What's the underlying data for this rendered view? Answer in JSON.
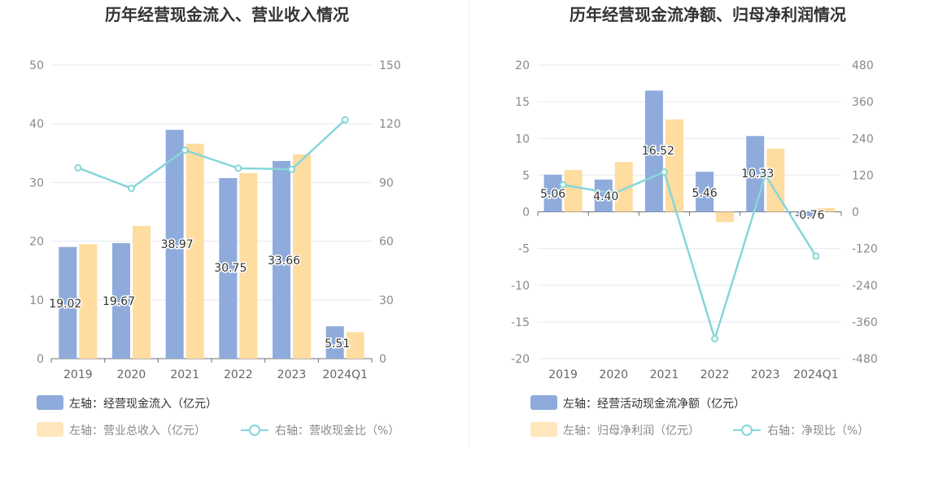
{
  "colors": {
    "cash_bar": "#8eabdb",
    "second_bar": "#ffdca0",
    "line": "#86d6d9",
    "grid": "#e6e9f2",
    "legend_dark": "#333333",
    "legend_light": "#8a8a8a"
  },
  "chart_data": [
    {
      "type": "bar",
      "title": "历年经营现金流入、营业收入情况",
      "categories": [
        "2019",
        "2020",
        "2021",
        "2022",
        "2023",
        "2024Q1"
      ],
      "ylim_left": [
        0,
        50
      ],
      "ylim_right": [
        0,
        150
      ],
      "left_ticks": [
        "50",
        "40",
        "30",
        "20",
        "10",
        "0"
      ],
      "right_ticks": [
        "150",
        "120",
        "90",
        "60",
        "30",
        "0"
      ],
      "series": [
        {
          "name": "左轴：经营现金流入（亿元）",
          "kind": "bar",
          "axis": "left",
          "values": [
            19.02,
            19.67,
            38.97,
            30.75,
            33.66,
            5.51
          ],
          "labels": [
            "19.02",
            "19.67",
            "38.97",
            "30.75",
            "33.66",
            "5.51"
          ]
        },
        {
          "name": "左轴：营业总收入（亿元）",
          "kind": "bar",
          "axis": "left",
          "values": [
            19.5,
            22.6,
            36.6,
            31.6,
            34.8,
            4.5
          ]
        },
        {
          "name": "右轴：营收现金比（%）",
          "kind": "line",
          "axis": "right",
          "values": [
            97.5,
            87.0,
            106.5,
            97.3,
            96.7,
            122.0
          ]
        }
      ],
      "grid": true,
      "legend_position": "bottom-left"
    },
    {
      "type": "bar",
      "title": "历年经营现金流净额、归母净利润情况",
      "categories": [
        "2019",
        "2020",
        "2021",
        "2022",
        "2023",
        "2024Q1"
      ],
      "ylim_left": [
        -20,
        20
      ],
      "ylim_right": [
        -480,
        480
      ],
      "left_ticks": [
        "20",
        "15",
        "10",
        "5",
        "0",
        "-5",
        "-10",
        "-15",
        "-20"
      ],
      "right_ticks": [
        "480",
        "360",
        "240",
        "120",
        "0",
        "-120",
        "-240",
        "-360",
        "-480"
      ],
      "series": [
        {
          "name": "左轴：经营活动现金流净额（亿元）",
          "kind": "bar",
          "axis": "left",
          "values": [
            5.06,
            4.4,
            16.52,
            5.46,
            10.33,
            -0.76
          ],
          "labels": [
            "5.06",
            "4.40",
            "16.52",
            "5.46",
            "10.33",
            "-0.76"
          ]
        },
        {
          "name": "左轴：归母净利润（亿元）",
          "kind": "bar",
          "axis": "left",
          "values": [
            5.7,
            6.8,
            12.6,
            -1.4,
            8.6,
            0.5
          ]
        },
        {
          "name": "右轴：净现比（%）",
          "kind": "line",
          "axis": "right",
          "values": [
            88,
            60,
            130,
            -415,
            120,
            -145
          ]
        }
      ],
      "grid": true,
      "legend_position": "bottom-left"
    }
  ]
}
